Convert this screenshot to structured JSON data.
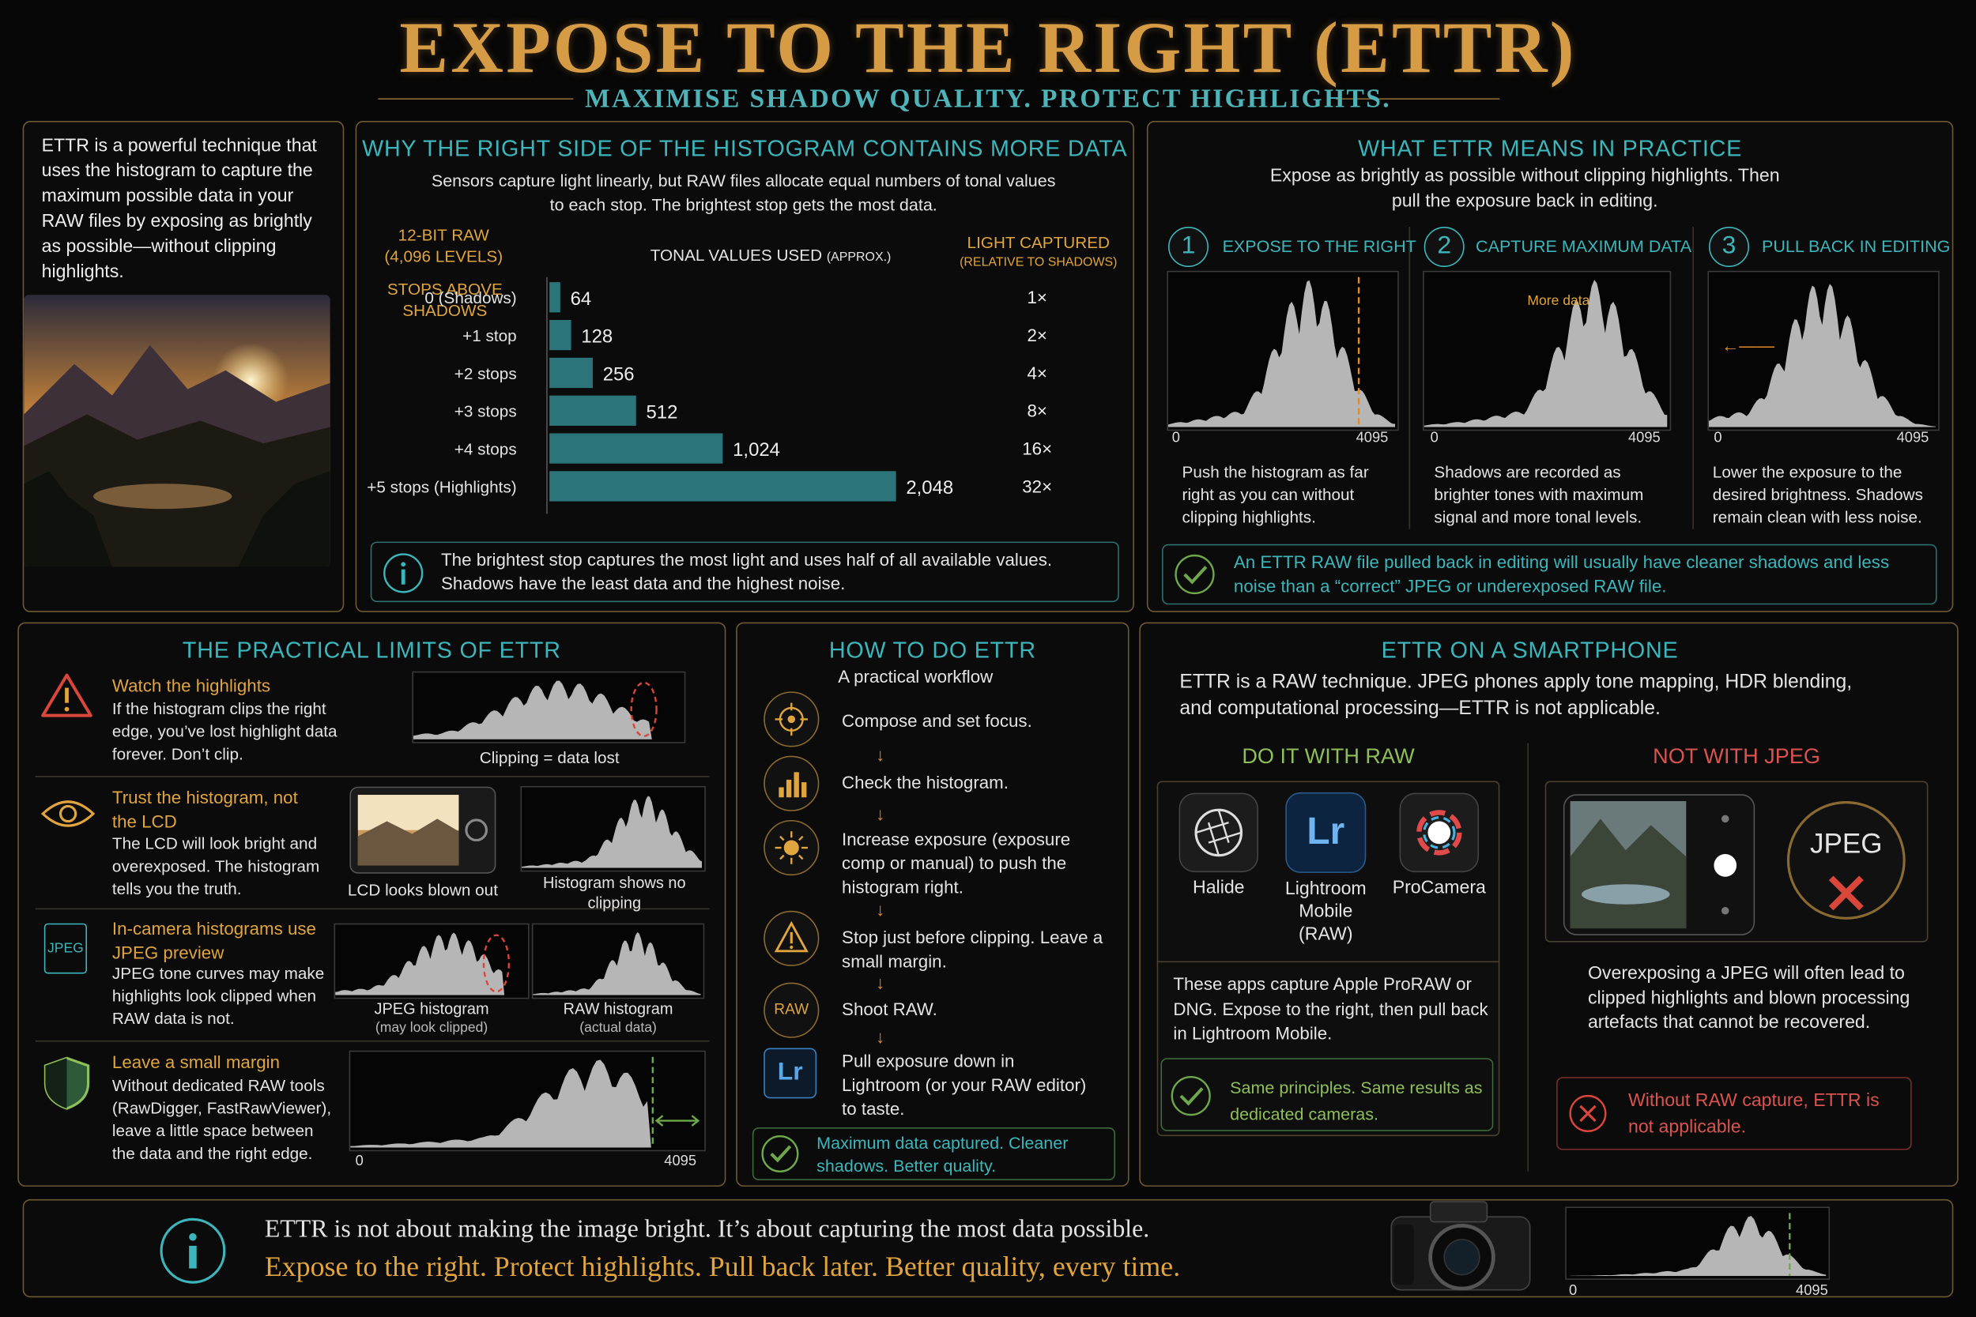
{
  "header": {
    "title": "EXPOSE TO THE RIGHT (ETTR)",
    "subtitle": "MAXIMISE SHADOW QUALITY. PROTECT HIGHLIGHTS."
  },
  "histogram_axis": {
    "min": 0,
    "max": 4095
  },
  "intro": {
    "text": "ETTR is a powerful technique that uses the histogram to capture the maximum possible data in your RAW files by exposing as brightly as possible—without clipping highlights."
  },
  "why": {
    "title": "WHY THE RIGHT SIDE OF THE HISTOGRAM CONTAINS MORE DATA",
    "description": "Sensors capture light linearly, but RAW files allocate equal numbers of tonal values to each stop. The brightest stop gets the most data.",
    "raw_label": "12-BIT RAW (4,096 LEVELS)",
    "stops_header": "STOPS ABOVE SHADOWS",
    "values_header": "TONAL VALUES USED",
    "values_header_note": "(APPROX.)",
    "light_header": "LIGHT CAPTURED",
    "light_header_note": "(RELATIVE TO SHADOWS)",
    "chart": {
      "type": "bar",
      "color": "#2f7f86",
      "categories": [
        "0 (Shadows)",
        "+1 stop",
        "+2 stops",
        "+3 stops",
        "+4 stops",
        "+5 stops (Highlights)"
      ],
      "values": [
        64,
        128,
        256,
        512,
        1024,
        2048
      ],
      "value_labels": [
        "64",
        "128",
        "256",
        "512",
        "1,024",
        "2,048"
      ],
      "light": [
        "1×",
        "2×",
        "4×",
        "8×",
        "16×",
        "32×"
      ]
    },
    "note": "The brightest stop captures the most light and uses half of all available values. Shadows have the least data and the highest noise."
  },
  "practice": {
    "title": "WHAT ETTR MEANS IN PRACTICE",
    "description": "Expose as brightly as possible without clipping highlights. Then pull the exposure back in editing.",
    "steps": [
      {
        "number": 1,
        "title": "EXPOSE TO THE RIGHT",
        "text": "Push the histogram as far right as you can without clipping highlights."
      },
      {
        "number": 2,
        "title": "CAPTURE MAXIMUM DATA",
        "annotation": "More data",
        "text": "Shadows are recorded as brighter tones with maximum signal and more tonal levels."
      },
      {
        "number": 3,
        "title": "PULL BACK IN EDITING",
        "text": "Lower the exposure to the desired brightness. Shadows remain clean with less noise."
      }
    ],
    "note": "An ETTR RAW file pulled back in editing will usually have cleaner shadows and less noise than a “correct” JPEG or underexposed RAW file."
  },
  "limits": {
    "title": "THE PRACTICAL LIMITS OF ETTR",
    "items": [
      {
        "title": "Watch the highlights",
        "text": "If the histogram clips the right edge, you’ve lost highlight data forever. Don’t clip.",
        "captions": [
          "Clipping = data lost"
        ]
      },
      {
        "title": "Trust the histogram, not the LCD",
        "text": "The LCD will look bright and overexposed. The histogram tells you the truth.",
        "captions": [
          "LCD looks blown out",
          "Histogram shows no clipping"
        ]
      },
      {
        "title": "In-camera histograms use JPEG preview",
        "icon_label": "JPEG",
        "text": "JPEG tone curves may make highlights look clipped when RAW data is not.",
        "captions": [
          "JPEG histogram",
          "RAW histogram"
        ],
        "caption_notes": [
          "(may look clipped)",
          "(actual data)"
        ]
      },
      {
        "title": "Leave a small margin",
        "text": "Without dedicated RAW tools (RawDigger, FastRawViewer), leave a little space between the data and the right edge."
      }
    ]
  },
  "howto": {
    "title": "HOW TO DO ETTR",
    "subtitle": "A practical workflow",
    "steps": [
      "Compose and set focus.",
      "Check the histogram.",
      "Increase exposure (exposure comp or manual) to push the histogram right.",
      "Stop just before clipping. Leave a small margin.",
      "Shoot RAW.",
      "Pull exposure down in Lightroom (or your RAW editor) to taste."
    ],
    "icon_raw": "RAW",
    "icon_lr": "Lr",
    "note": "Maximum data captured. Cleaner shadows. Better quality."
  },
  "smartphone": {
    "title": "ETTR ON A SMARTPHONE",
    "description": "ETTR is a RAW technique. JPEG phones apply tone mapping, HDR blending, and computational processing—ETTR is not applicable.",
    "raw": {
      "title": "DO IT WITH RAW",
      "apps": [
        "Halide",
        "Lightroom Mobile (RAW)",
        "ProCamera"
      ],
      "app_icon": "Lr",
      "text": "These apps capture Apple ProRAW or DNG. Expose to the right, then pull back in Lightroom Mobile.",
      "note": "Same principles. Same results as dedicated cameras."
    },
    "jpeg": {
      "title": "NOT WITH JPEG",
      "badge": "JPEG",
      "text": "Overexposing a JPEG will often lead to clipped highlights and blown processing artefacts that cannot be recovered.",
      "note": "Without RAW capture, ETTR is not applicable."
    }
  },
  "footer": {
    "line1": "ETTR is not about making the image bright. It’s about capturing the most data possible.",
    "line2": "Expose to the right. Protect highlights. Pull back later. Better quality, every time."
  }
}
